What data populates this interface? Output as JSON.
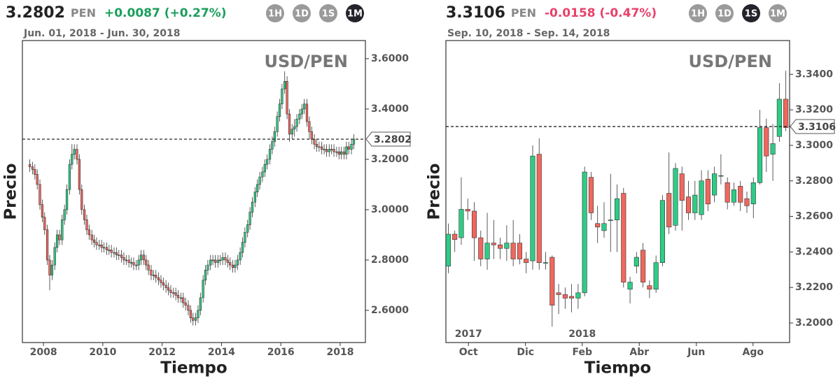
{
  "chart_data": [
    {
      "type": "candlestick",
      "price_text": "3.2802",
      "currency": "PEN",
      "change": "+0.0087 (+0.27%)",
      "change_color": "#1a9e5c",
      "buttons": [
        "1H",
        "1D",
        "1S",
        "1M"
      ],
      "active": "1M",
      "range": "Jun. 01, 2018 - Jun. 30, 2018",
      "title": "USD/PEN",
      "xlabel": "Tiempo",
      "ylabel": "Precio",
      "last": 3.2802,
      "up_color": "#2ecc85",
      "down_color": "#f0675d",
      "xlim": [
        2007.29,
        2018.85
      ],
      "xticks": [
        2008,
        2010,
        2012,
        2014,
        2016,
        2018
      ],
      "ylim": [
        2.472,
        3.672
      ],
      "yticks": [
        {
          "value": 2.6,
          "label": "2.6000"
        },
        {
          "value": 2.8,
          "label": "2.8000"
        },
        {
          "value": 3.0,
          "label": "3.0000"
        },
        {
          "value": 3.2,
          "label": "3.2000"
        },
        {
          "value": 3.4,
          "label": "3.4000"
        },
        {
          "value": 3.6,
          "label": "3.6000"
        }
      ],
      "x": [
        2007.54,
        2007.63,
        2007.71,
        2007.79,
        2007.88,
        2007.96,
        2008.04,
        2008.13,
        2008.21,
        2008.29,
        2008.38,
        2008.46,
        2008.54,
        2008.63,
        2008.71,
        2008.79,
        2008.88,
        2008.96,
        2009.04,
        2009.13,
        2009.21,
        2009.29,
        2009.38,
        2009.46,
        2009.54,
        2009.63,
        2009.71,
        2009.79,
        2009.88,
        2009.96,
        2010.04,
        2010.13,
        2010.21,
        2010.29,
        2010.38,
        2010.46,
        2010.54,
        2010.63,
        2010.71,
        2010.79,
        2010.88,
        2010.96,
        2011.04,
        2011.13,
        2011.21,
        2011.29,
        2011.38,
        2011.46,
        2011.54,
        2011.63,
        2011.71,
        2011.79,
        2011.88,
        2011.96,
        2012.04,
        2012.13,
        2012.21,
        2012.29,
        2012.38,
        2012.46,
        2012.54,
        2012.63,
        2012.71,
        2012.79,
        2012.88,
        2012.96,
        2013.04,
        2013.13,
        2013.21,
        2013.29,
        2013.38,
        2013.46,
        2013.54,
        2013.63,
        2013.71,
        2013.79,
        2013.88,
        2013.96,
        2014.04,
        2014.13,
        2014.21,
        2014.29,
        2014.38,
        2014.46,
        2014.54,
        2014.63,
        2014.71,
        2014.79,
        2014.88,
        2014.96,
        2015.04,
        2015.13,
        2015.21,
        2015.29,
        2015.38,
        2015.46,
        2015.54,
        2015.63,
        2015.71,
        2015.79,
        2015.88,
        2015.96,
        2016.04,
        2016.13,
        2016.21,
        2016.29,
        2016.38,
        2016.46,
        2016.54,
        2016.63,
        2016.71,
        2016.79,
        2016.88,
        2016.96,
        2017.04,
        2017.13,
        2017.21,
        2017.29,
        2017.38,
        2017.46,
        2017.54,
        2017.63,
        2017.71,
        2017.79,
        2017.88,
        2017.96,
        2018.04,
        2018.13,
        2018.21,
        2018.29,
        2018.38,
        2018.46
      ],
      "open": [
        3.18,
        3.17,
        3.16,
        3.14,
        3.1,
        3.02,
        2.97,
        2.92,
        2.8,
        2.74,
        2.78,
        2.85,
        2.9,
        2.88,
        2.96,
        3.0,
        3.08,
        3.18,
        3.22,
        3.24,
        3.2,
        3.08,
        3.0,
        2.96,
        2.92,
        2.9,
        2.88,
        2.87,
        2.86,
        2.86,
        2.85,
        2.85,
        2.84,
        2.84,
        2.83,
        2.83,
        2.82,
        2.82,
        2.81,
        2.8,
        2.8,
        2.79,
        2.79,
        2.78,
        2.78,
        2.8,
        2.82,
        2.8,
        2.78,
        2.76,
        2.74,
        2.74,
        2.73,
        2.72,
        2.71,
        2.7,
        2.69,
        2.68,
        2.67,
        2.67,
        2.66,
        2.65,
        2.65,
        2.63,
        2.62,
        2.6,
        2.57,
        2.56,
        2.57,
        2.6,
        2.65,
        2.72,
        2.76,
        2.78,
        2.8,
        2.8,
        2.79,
        2.8,
        2.8,
        2.81,
        2.8,
        2.79,
        2.78,
        2.77,
        2.78,
        2.8,
        2.83,
        2.87,
        2.91,
        2.94,
        2.99,
        3.03,
        3.07,
        3.1,
        3.13,
        3.15,
        3.18,
        3.2,
        3.24,
        3.27,
        3.31,
        3.37,
        3.42,
        3.48,
        3.51,
        3.38,
        3.3,
        3.32,
        3.33,
        3.36,
        3.38,
        3.4,
        3.42,
        3.35,
        3.31,
        3.28,
        3.26,
        3.25,
        3.25,
        3.24,
        3.24,
        3.23,
        3.24,
        3.24,
        3.23,
        3.23,
        3.22,
        3.23,
        3.22,
        3.25,
        3.24,
        3.26
      ],
      "high": [
        3.2,
        3.19,
        3.18,
        3.16,
        3.12,
        3.04,
        2.99,
        2.94,
        2.82,
        2.8,
        2.87,
        2.92,
        2.92,
        2.98,
        3.02,
        3.1,
        3.2,
        3.26,
        3.26,
        3.26,
        3.22,
        3.1,
        3.02,
        2.98,
        2.94,
        2.92,
        2.9,
        2.89,
        2.88,
        2.88,
        2.87,
        2.87,
        2.86,
        2.86,
        2.85,
        2.85,
        2.84,
        2.84,
        2.83,
        2.82,
        2.82,
        2.81,
        2.81,
        2.8,
        2.82,
        2.84,
        2.84,
        2.82,
        2.8,
        2.78,
        2.76,
        2.76,
        2.75,
        2.74,
        2.73,
        2.72,
        2.71,
        2.7,
        2.69,
        2.69,
        2.68,
        2.67,
        2.67,
        2.65,
        2.64,
        2.62,
        2.59,
        2.59,
        2.62,
        2.67,
        2.74,
        2.78,
        2.8,
        2.82,
        2.82,
        2.82,
        2.82,
        2.82,
        2.83,
        2.83,
        2.82,
        2.81,
        2.8,
        2.8,
        2.82,
        2.85,
        2.89,
        2.93,
        2.96,
        3.01,
        3.05,
        3.09,
        3.12,
        3.15,
        3.17,
        3.2,
        3.22,
        3.26,
        3.29,
        3.33,
        3.39,
        3.44,
        3.5,
        3.55,
        3.53,
        3.4,
        3.34,
        3.36,
        3.38,
        3.4,
        3.42,
        3.44,
        3.44,
        3.37,
        3.33,
        3.3,
        3.28,
        3.27,
        3.27,
        3.26,
        3.26,
        3.26,
        3.26,
        3.26,
        3.25,
        3.25,
        3.25,
        3.25,
        3.27,
        3.27,
        3.28,
        3.3
      ],
      "low": [
        3.15,
        3.14,
        3.12,
        3.08,
        3.0,
        2.95,
        2.9,
        2.78,
        2.68,
        2.72,
        2.76,
        2.83,
        2.86,
        2.86,
        2.94,
        2.98,
        3.06,
        3.16,
        3.2,
        3.18,
        3.06,
        2.98,
        2.94,
        2.9,
        2.88,
        2.86,
        2.85,
        2.84,
        2.84,
        2.83,
        2.83,
        2.82,
        2.82,
        2.81,
        2.81,
        2.8,
        2.8,
        2.79,
        2.78,
        2.78,
        2.77,
        2.77,
        2.76,
        2.76,
        2.76,
        2.78,
        2.78,
        2.76,
        2.74,
        2.72,
        2.72,
        2.71,
        2.7,
        2.69,
        2.68,
        2.67,
        2.66,
        2.65,
        2.65,
        2.64,
        2.63,
        2.63,
        2.61,
        2.6,
        2.58,
        2.55,
        2.54,
        2.54,
        2.55,
        2.58,
        2.63,
        2.7,
        2.74,
        2.76,
        2.78,
        2.77,
        2.77,
        2.78,
        2.78,
        2.78,
        2.77,
        2.76,
        2.75,
        2.75,
        2.76,
        2.78,
        2.81,
        2.85,
        2.89,
        2.92,
        2.97,
        3.01,
        3.05,
        3.08,
        3.11,
        3.13,
        3.16,
        3.18,
        3.22,
        3.25,
        3.29,
        3.35,
        3.4,
        3.46,
        3.36,
        3.27,
        3.28,
        3.29,
        3.31,
        3.34,
        3.36,
        3.38,
        3.33,
        3.28,
        3.26,
        3.24,
        3.23,
        3.23,
        3.22,
        3.22,
        3.21,
        3.21,
        3.22,
        3.21,
        3.21,
        3.2,
        3.2,
        3.2,
        3.2,
        3.22,
        3.22,
        3.24
      ],
      "close": [
        3.17,
        3.16,
        3.14,
        3.1,
        3.02,
        2.97,
        2.92,
        2.8,
        2.74,
        2.78,
        2.85,
        2.9,
        2.88,
        2.96,
        3.0,
        3.08,
        3.18,
        3.22,
        3.24,
        3.2,
        3.08,
        3.0,
        2.96,
        2.92,
        2.9,
        2.88,
        2.87,
        2.86,
        2.86,
        2.85,
        2.85,
        2.84,
        2.84,
        2.83,
        2.83,
        2.82,
        2.82,
        2.81,
        2.8,
        2.8,
        2.79,
        2.79,
        2.78,
        2.78,
        2.8,
        2.82,
        2.8,
        2.78,
        2.76,
        2.74,
        2.74,
        2.73,
        2.72,
        2.71,
        2.7,
        2.69,
        2.68,
        2.67,
        2.67,
        2.66,
        2.65,
        2.65,
        2.63,
        2.62,
        2.6,
        2.57,
        2.56,
        2.57,
        2.6,
        2.65,
        2.72,
        2.76,
        2.78,
        2.8,
        2.8,
        2.79,
        2.8,
        2.8,
        2.81,
        2.8,
        2.79,
        2.78,
        2.77,
        2.78,
        2.8,
        2.83,
        2.87,
        2.91,
        2.94,
        2.99,
        3.03,
        3.07,
        3.1,
        3.13,
        3.15,
        3.18,
        3.2,
        3.24,
        3.27,
        3.31,
        3.37,
        3.42,
        3.48,
        3.51,
        3.38,
        3.3,
        3.32,
        3.33,
        3.36,
        3.38,
        3.4,
        3.42,
        3.35,
        3.31,
        3.28,
        3.26,
        3.25,
        3.25,
        3.24,
        3.24,
        3.23,
        3.24,
        3.24,
        3.23,
        3.23,
        3.22,
        3.23,
        3.22,
        3.25,
        3.24,
        3.26,
        3.28
      ]
    },
    {
      "type": "candlestick",
      "price_text": "3.3106",
      "currency": "PEN",
      "change": "-0.0158 (-0.47%)",
      "change_color": "#e8416a",
      "buttons": [
        "1H",
        "1D",
        "1S",
        "1M"
      ],
      "active": "1S",
      "range": "Sep. 10, 2018 - Sep. 14, 2018",
      "title": "USD/PEN",
      "xlabel": "Tiempo",
      "ylabel": "Precio",
      "last": 3.3106,
      "up_color": "#2ecc85",
      "down_color": "#f0675d",
      "xlim": [
        2017.684,
        2018.69
      ],
      "xticks": [
        {
          "value": 2017.75,
          "label": "Oct"
        },
        {
          "value": 2017.917,
          "label": "Dic"
        },
        {
          "value": 2018.083,
          "label": "Feb"
        },
        {
          "value": 2018.25,
          "label": "Abr"
        },
        {
          "value": 2018.417,
          "label": "Jun"
        },
        {
          "value": 2018.583,
          "label": "Ago"
        }
      ],
      "annotations": [
        {
          "value": 2017.75,
          "label": "2017"
        },
        {
          "value": 2018.083,
          "label": "2018"
        }
      ],
      "ylim": [
        3.189,
        3.359
      ],
      "yticks": [
        {
          "value": 3.2,
          "label": "3.2000"
        },
        {
          "value": 3.22,
          "label": "3.2200"
        },
        {
          "value": 3.24,
          "label": "3.2400"
        },
        {
          "value": 3.26,
          "label": "3.2600"
        },
        {
          "value": 3.28,
          "label": "3.2800"
        },
        {
          "value": 3.3,
          "label": "3.3000"
        },
        {
          "value": 3.32,
          "label": "3.3200"
        },
        {
          "value": 3.34,
          "label": "3.3400"
        }
      ],
      "x": [
        2017.691,
        2017.71,
        2017.729,
        2017.748,
        2017.767,
        2017.786,
        2017.805,
        2017.824,
        2017.843,
        2017.862,
        2017.881,
        2017.9,
        2017.919,
        2017.938,
        2017.957,
        2017.976,
        2017.995,
        2018.014,
        2018.033,
        2018.052,
        2018.071,
        2018.09,
        2018.109,
        2018.128,
        2018.147,
        2018.166,
        2018.185,
        2018.204,
        2018.223,
        2018.242,
        2018.261,
        2018.28,
        2018.299,
        2018.318,
        2018.337,
        2018.356,
        2018.375,
        2018.394,
        2018.413,
        2018.432,
        2018.451,
        2018.47,
        2018.489,
        2018.508,
        2018.527,
        2018.546,
        2018.565,
        2018.584,
        2018.603,
        2018.622,
        2018.641,
        2018.66,
        2018.679
      ],
      "open": [
        3.232,
        3.25,
        3.248,
        3.264,
        3.263,
        3.248,
        3.236,
        3.245,
        3.244,
        3.242,
        3.245,
        3.245,
        3.236,
        3.235,
        3.295,
        3.234,
        3.237,
        3.217,
        3.216,
        3.215,
        3.214,
        3.217,
        3.282,
        3.256,
        3.252,
        3.258,
        3.258,
        3.273,
        3.219,
        3.232,
        3.241,
        3.221,
        3.219,
        3.234,
        3.273,
        3.255,
        3.284,
        3.271,
        3.262,
        3.261,
        3.281,
        3.272,
        3.283,
        3.279,
        3.268,
        3.277,
        3.27,
        3.267,
        3.279,
        3.31,
        3.295,
        3.305,
        3.326
      ],
      "high": [
        3.256,
        3.252,
        3.282,
        3.27,
        3.268,
        3.252,
        3.262,
        3.258,
        3.248,
        3.255,
        3.258,
        3.25,
        3.24,
        3.3,
        3.304,
        3.24,
        3.238,
        3.222,
        3.22,
        3.222,
        3.222,
        3.288,
        3.285,
        3.266,
        3.268,
        3.284,
        3.278,
        3.276,
        3.226,
        3.24,
        3.245,
        3.224,
        3.238,
        3.272,
        3.296,
        3.29,
        3.288,
        3.28,
        3.28,
        3.286,
        3.286,
        3.288,
        3.295,
        3.282,
        3.279,
        3.28,
        3.274,
        3.282,
        3.32,
        3.315,
        3.312,
        3.335,
        3.342
      ],
      "low": [
        3.228,
        3.24,
        3.244,
        3.258,
        3.235,
        3.232,
        3.23,
        3.236,
        3.236,
        3.235,
        3.232,
        3.233,
        3.228,
        3.23,
        3.23,
        3.23,
        3.198,
        3.205,
        3.208,
        3.206,
        3.208,
        3.215,
        3.258,
        3.245,
        3.248,
        3.24,
        3.24,
        3.22,
        3.211,
        3.228,
        3.22,
        3.214,
        3.217,
        3.232,
        3.25,
        3.252,
        3.252,
        3.258,
        3.258,
        3.258,
        3.263,
        3.268,
        3.278,
        3.264,
        3.266,
        3.263,
        3.262,
        3.259,
        3.278,
        3.285,
        3.28,
        3.302,
        3.308
      ],
      "close": [
        3.25,
        3.247,
        3.264,
        3.263,
        3.248,
        3.236,
        3.245,
        3.244,
        3.242,
        3.245,
        3.236,
        3.236,
        3.234,
        3.294,
        3.234,
        3.234,
        3.21,
        3.216,
        3.214,
        3.214,
        3.217,
        3.285,
        3.262,
        3.254,
        3.256,
        3.258,
        3.27,
        3.223,
        3.223,
        3.237,
        3.223,
        3.219,
        3.234,
        3.269,
        3.254,
        3.287,
        3.269,
        3.262,
        3.272,
        3.28,
        3.267,
        3.284,
        3.283,
        3.268,
        3.275,
        3.268,
        3.266,
        3.279,
        3.31,
        3.294,
        3.301,
        3.326,
        3.31
      ]
    }
  ]
}
